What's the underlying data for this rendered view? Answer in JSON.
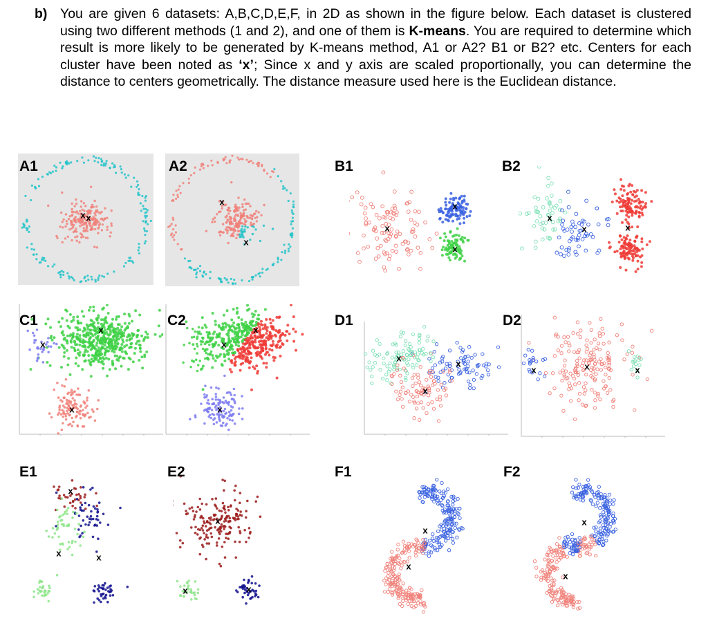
{
  "question": {
    "label": "b)",
    "before_bold": "You are given 6 datasets: A,B,C,D,E,F, in 2D as shown in the figure below. Each dataset is clustered using two different methods (1 and 2), and one of them is ",
    "bold": "K-means",
    "after_bold": ". You are required to determine which result is more likely to be generated by K-means method, A1 or A2? B1 or B2? etc. Centers for each cluster have been noted as ",
    "x_quote": "‘x’",
    "after_x": "; Since x and y axis are scaled proportionally, you can determine the distance to centers geometrically. The distance measure used here is the Euclidean distance."
  },
  "center_marker": "x",
  "colors": {
    "salmon": "#f0817a",
    "teal": "#22c3c9",
    "blue": "#3a62e0",
    "green": "#3fd147",
    "mint": "#7fe0b6",
    "red": "#ef3b36",
    "periwinkle": "#7d7cf0",
    "darkred": "#9b1b1b",
    "navy": "#10108e",
    "lightgreen": "#8ee58a",
    "gray_bg": "#e6e6e6"
  },
  "panels": [
    {
      "label": "A1"
    },
    {
      "label": "A2"
    },
    {
      "label": "B1"
    },
    {
      "label": "B2"
    },
    {
      "label": "C1"
    },
    {
      "label": "C2"
    },
    {
      "label": "D1"
    },
    {
      "label": "D2"
    },
    {
      "label": "E1"
    },
    {
      "label": "E2"
    },
    {
      "label": "F1"
    },
    {
      "label": "F2"
    }
  ]
}
